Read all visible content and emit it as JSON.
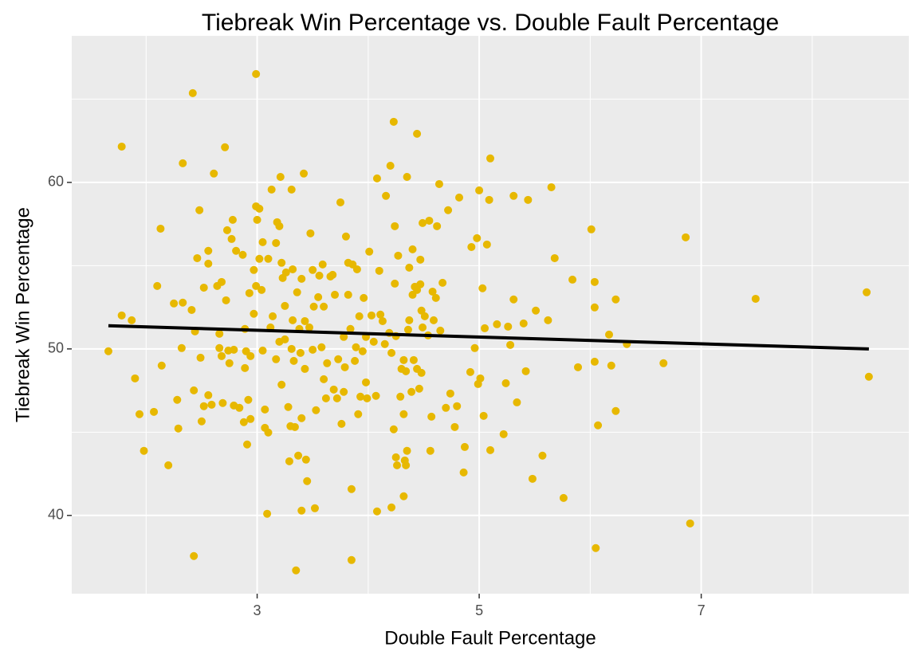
{
  "chart_data": {
    "type": "scatter",
    "title": "Tiebreak Win Percentage vs. Double Fault Percentage",
    "xlabel": "Double Fault Percentage",
    "ylabel": "Tiebreak Win Percentage",
    "xlim": [
      1.33,
      8.87
    ],
    "ylim": [
      35.3,
      68.8
    ],
    "xticks": [
      3,
      5,
      7
    ],
    "yticks": [
      40,
      50,
      60
    ],
    "xminor": [
      2,
      4,
      6,
      8
    ],
    "yminor": [
      45,
      55,
      65
    ],
    "grid": true,
    "color": "#E7B800",
    "x": [
      1.66,
      1.78,
      1.78,
      1.87,
      1.9,
      1.94,
      1.98,
      2.07,
      2.1,
      2.13,
      2.14,
      2.2,
      2.25,
      2.28,
      2.29,
      2.32,
      2.33,
      2.33,
      2.41,
      2.42,
      2.43,
      2.43,
      2.46,
      2.44,
      2.48,
      2.49,
      2.5,
      2.52,
      2.52,
      2.56,
      2.56,
      2.56,
      2.61,
      2.59,
      2.64,
      2.66,
      2.66,
      2.68,
      2.68,
      2.69,
      2.71,
      2.72,
      2.73,
      2.74,
      2.75,
      2.77,
      2.78,
      2.79,
      2.79,
      2.81,
      2.84,
      2.87,
      2.88,
      2.89,
      2.89,
      2.9,
      2.91,
      2.92,
      2.93,
      2.94,
      2.94,
      2.97,
      2.97,
      2.99,
      2.99,
      2.99,
      3.0,
      3.02,
      3.02,
      3.04,
      3.05,
      3.05,
      3.07,
      3.07,
      3.09,
      3.1,
      3.1,
      3.13,
      3.12,
      3.14,
      3.17,
      3.17,
      3.18,
      3.2,
      3.21,
      3.2,
      3.22,
      3.22,
      3.23,
      3.25,
      3.25,
      3.26,
      3.28,
      3.29,
      3.3,
      3.31,
      3.31,
      3.32,
      3.32,
      3.33,
      3.34,
      3.35,
      3.36,
      3.37,
      3.38,
      3.39,
      3.4,
      3.4,
      3.4,
      3.42,
      3.43,
      3.43,
      3.44,
      3.45,
      3.47,
      3.48,
      3.5,
      3.5,
      3.51,
      3.52,
      3.53,
      3.55,
      3.56,
      3.58,
      3.59,
      3.6,
      3.6,
      3.62,
      3.63,
      3.66,
      3.68,
      3.69,
      3.7,
      3.72,
      3.73,
      3.75,
      3.76,
      3.78,
      3.78,
      3.79,
      3.8,
      3.82,
      3.82,
      3.84,
      3.85,
      3.85,
      3.86,
      3.88,
      3.89,
      3.9,
      3.91,
      3.92,
      3.93,
      3.95,
      3.96,
      3.98,
      3.98,
      3.99,
      4.01,
      4.03,
      4.05,
      4.07,
      4.08,
      4.08,
      4.1,
      4.11,
      4.13,
      4.15,
      4.16,
      4.19,
      4.2,
      4.21,
      4.21,
      4.23,
      4.23,
      4.24,
      4.24,
      4.25,
      4.25,
      4.26,
      4.27,
      4.29,
      4.3,
      4.32,
      4.32,
      4.32,
      4.33,
      4.34,
      4.34,
      4.35,
      4.35,
      4.36,
      4.37,
      4.37,
      4.39,
      4.4,
      4.4,
      4.41,
      4.42,
      4.44,
      4.44,
      4.44,
      4.46,
      4.47,
      4.47,
      4.48,
      4.48,
      4.49,
      4.49,
      4.51,
      4.54,
      4.55,
      4.56,
      4.57,
      4.58,
      4.59,
      4.61,
      4.62,
      4.64,
      4.65,
      4.67,
      4.7,
      4.72,
      4.74,
      4.78,
      4.8,
      4.82,
      4.86,
      4.87,
      4.92,
      4.93,
      4.96,
      4.98,
      4.99,
      5.0,
      5.01,
      5.03,
      5.04,
      5.05,
      5.07,
      5.09,
      5.1,
      5.1,
      5.16,
      5.22,
      5.24,
      5.26,
      5.28,
      5.31,
      5.31,
      5.34,
      5.4,
      5.42,
      5.44,
      5.48,
      5.51,
      5.57,
      5.62,
      5.65,
      5.68,
      5.76,
      5.84,
      5.89,
      6.01,
      6.04,
      6.04,
      6.04,
      6.05,
      6.07,
      6.17,
      6.19,
      6.23,
      6.23,
      6.33,
      6.66,
      6.86,
      6.9,
      7.49,
      8.49,
      8.51
    ],
    "values": [
      49.86,
      62.15,
      52.01,
      51.72,
      48.23,
      46.08,
      43.88,
      46.22,
      53.78,
      57.22,
      49.0,
      43.01,
      52.73,
      46.94,
      45.22,
      50.05,
      61.15,
      52.78,
      52.34,
      65.36,
      47.51,
      37.56,
      55.45,
      51.05,
      58.33,
      49.47,
      45.65,
      53.68,
      46.56,
      55.89,
      55.12,
      47.22,
      60.53,
      46.65,
      53.78,
      50.91,
      50.05,
      54.02,
      49.57,
      46.75,
      62.11,
      52.92,
      57.13,
      49.9,
      49.14,
      56.6,
      57.75,
      46.6,
      49.95,
      55.89,
      46.46,
      55.65,
      45.6,
      51.2,
      48.85,
      49.86,
      44.26,
      46.94,
      53.35,
      45.79,
      49.57,
      52.11,
      54.74,
      58.56,
      53.78,
      66.51,
      57.75,
      58.42,
      55.41,
      53.54,
      49.9,
      56.41,
      45.26,
      46.36,
      40.1,
      44.98,
      55.41,
      59.57,
      51.29,
      51.96,
      49.38,
      56.36,
      57.61,
      50.43,
      60.33,
      57.37,
      55.17,
      47.85,
      54.26,
      52.58,
      50.57,
      54.59,
      46.51,
      43.25,
      45.36,
      59.57,
      50.0,
      54.78,
      51.72,
      49.28,
      45.31,
      36.7,
      53.4,
      43.59,
      51.2,
      49.76,
      54.21,
      40.29,
      45.84,
      60.53,
      51.67,
      48.8,
      43.35,
      42.06,
      51.29,
      56.94,
      49.95,
      54.74,
      52.54,
      40.43,
      46.32,
      53.11,
      54.4,
      50.1,
      55.07,
      52.54,
      48.18,
      47.03,
      49.14,
      54.35,
      54.45,
      47.56,
      53.25,
      47.03,
      49.38,
      58.8,
      45.5,
      47.42,
      50.72,
      48.9,
      56.75,
      55.17,
      53.25,
      51.2,
      37.32,
      41.58,
      55.07,
      49.28,
      50.1,
      54.78,
      46.08,
      51.96,
      47.13,
      49.86,
      53.06,
      50.72,
      47.99,
      47.03,
      55.84,
      52.01,
      50.43,
      47.18,
      40.24,
      60.24,
      54.69,
      52.06,
      51.67,
      50.29,
      59.19,
      50.96,
      61.0,
      40.48,
      49.76,
      45.17,
      63.64,
      57.37,
      53.92,
      50.77,
      43.49,
      43.01,
      55.6,
      47.13,
      48.8,
      49.33,
      46.08,
      41.15,
      43.3,
      43.01,
      48.66,
      60.33,
      43.88,
      51.15,
      51.72,
      54.88,
      47.42,
      55.98,
      53.25,
      49.33,
      53.73,
      53.54,
      62.92,
      48.8,
      47.61,
      53.88,
      55.36,
      52.3,
      48.56,
      51.29,
      57.56,
      51.96,
      50.81,
      57.7,
      43.88,
      45.93,
      53.44,
      51.72,
      53.06,
      57.37,
      59.9,
      51.1,
      53.97,
      46.46,
      58.33,
      47.32,
      45.31,
      46.56,
      59.09,
      42.58,
      44.11,
      48.61,
      56.12,
      50.05,
      56.65,
      47.89,
      59.52,
      48.23,
      53.64,
      45.98,
      51.24,
      56.27,
      58.95,
      43.92,
      61.44,
      51.48,
      44.88,
      47.94,
      51.34,
      50.24,
      52.97,
      59.19,
      46.79,
      51.53,
      48.66,
      58.95,
      42.2,
      52.3,
      43.59,
      51.72,
      59.71,
      55.45,
      41.05,
      54.16,
      48.9,
      57.18,
      49.23,
      54.02,
      52.49,
      38.04,
      45.41,
      50.86,
      49.0,
      52.97,
      46.27,
      50.29,
      49.14,
      56.7,
      39.52,
      53.01,
      53.4,
      48.33
    ],
    "trend": {
      "x": [
        1.66,
        8.51
      ],
      "y": [
        51.39,
        50.0
      ],
      "color": "#000000"
    }
  }
}
